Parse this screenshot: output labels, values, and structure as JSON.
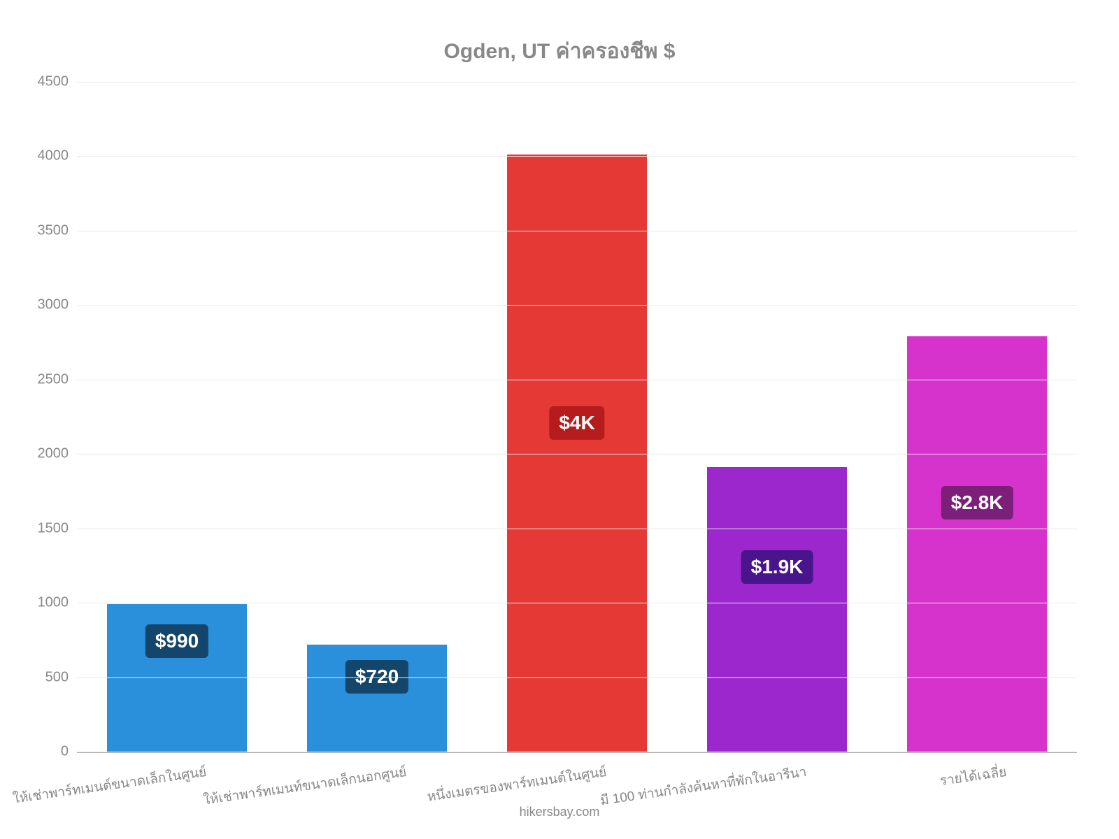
{
  "chart": {
    "type": "bar",
    "title": "Ogden, UT ค่าครองชีพ $",
    "title_fontsize": 30,
    "title_color": "#888888",
    "background_color": "#ffffff",
    "grid_color": "#e9e9e9",
    "axis_color": "#aaaaaa",
    "tick_color": "#888888",
    "tick_fontsize": 20,
    "xtick_fontsize": 19,
    "ylim": [
      0,
      4500
    ],
    "ytick_step": 500,
    "yticks": [
      "0",
      "500",
      "1000",
      "1500",
      "2000",
      "2500",
      "3000",
      "3500",
      "4000",
      "4500"
    ],
    "bar_width_pct": 70,
    "categories": [
      "ให้เช่าพาร์ทเมนต์ขนาดเล็กในศูนย์",
      "ให้เช่าพาร์ทเมนท์ขนาดเล็กนอกศูนย์",
      "หนึ่งเมตรของพาร์ทเมนต์ในศูนย์",
      "มี 100 ท่านกำลังค้นหาที่พักในอารีนา",
      "รายได้เฉลี่ย"
    ],
    "values": [
      990,
      720,
      4010,
      1910,
      2790
    ],
    "value_labels": [
      "$990",
      "$720",
      "$4K",
      "$1.9K",
      "$2.8K"
    ],
    "value_label_top_pct": [
      25,
      30,
      45,
      35,
      40
    ],
    "value_label_fontsize": 28,
    "bar_colors": [
      "#2a90db",
      "#2a90db",
      "#e53935",
      "#9c27cc",
      "#d633cc"
    ],
    "label_bg_colors": [
      "#14466b",
      "#14466b",
      "#b71c1c",
      "#4a148c",
      "#7b1f78"
    ],
    "footer": "hikersbay.com",
    "footer_fontsize": 18
  }
}
